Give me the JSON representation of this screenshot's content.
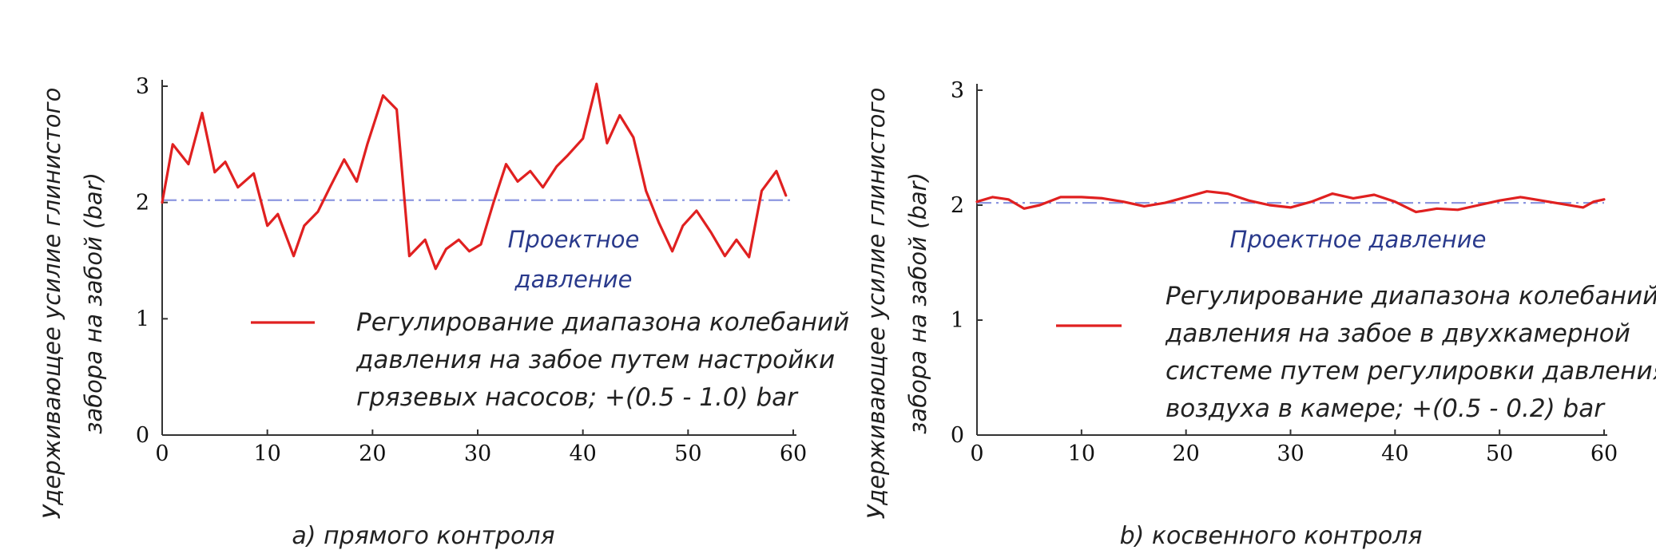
{
  "colors": {
    "series": "#e02020",
    "reference": "#8c96e0",
    "annotation": "#2a3a8c",
    "axis": "#333333"
  },
  "chart_data": [
    {
      "type": "line",
      "ylabel": [
        "Удерживающее усилие глинистого",
        "забора на забой (bar)"
      ],
      "xlabel": "",
      "xlim": [
        0,
        60
      ],
      "ylim": [
        0,
        3
      ],
      "x_ticks": [
        "0",
        "10",
        "20",
        "30",
        "40",
        "50",
        "60"
      ],
      "y_ticks": [
        "0",
        "1",
        "2",
        "3"
      ],
      "reference_line": {
        "y": 2.02,
        "style": "dash-dot"
      },
      "annotation": [
        "Проектное",
        "давление"
      ],
      "legend_lines": [
        "Регулирование диапазона колебаний",
        "давления на забое путем настройки",
        "грязевых насосов; +(0.5 - 1.0) bar"
      ],
      "caption": "a) прямого контроля",
      "series": [
        {
          "x": [
            0,
            1,
            2.5,
            3.8,
            5,
            6,
            7.2,
            8.7,
            10,
            11,
            12.5,
            13.5,
            14.8,
            16,
            17.3,
            18.5,
            19.5,
            21,
            22.3,
            23.5,
            25,
            26,
            27,
            28.2,
            29.2,
            30.3,
            31.5,
            32.7,
            33.8,
            35,
            36.2,
            37.5,
            38.5,
            40,
            41.3,
            42.3,
            43.5,
            44.8,
            46,
            47.2,
            48.5,
            49.5,
            50.8,
            52.2,
            53.5,
            54.6,
            55.8,
            57,
            58.4,
            59.3
          ],
          "values": [
            2.0,
            2.5,
            2.33,
            2.77,
            2.26,
            2.35,
            2.13,
            2.25,
            1.8,
            1.9,
            1.54,
            1.8,
            1.92,
            2.14,
            2.37,
            2.18,
            2.5,
            2.92,
            2.8,
            1.54,
            1.68,
            1.43,
            1.6,
            1.68,
            1.58,
            1.64,
            2.0,
            2.33,
            2.18,
            2.27,
            2.13,
            2.31,
            2.4,
            2.55,
            3.02,
            2.51,
            2.75,
            2.56,
            2.1,
            1.83,
            1.58,
            1.8,
            1.93,
            1.74,
            1.54,
            1.68,
            1.53,
            2.1,
            2.27,
            2.06
          ]
        }
      ]
    },
    {
      "type": "line",
      "ylabel": [
        "Удерживающее усилие глинистого",
        "забора на забой (bar)"
      ],
      "xlabel": "",
      "xlim": [
        0,
        60
      ],
      "ylim": [
        0,
        3
      ],
      "x_ticks": [
        "0",
        "10",
        "20",
        "30",
        "40",
        "50",
        "60"
      ],
      "y_ticks": [
        "0",
        "1",
        "2",
        "3"
      ],
      "reference_line": {
        "y": 2.02,
        "style": "dash-dot"
      },
      "annotation": [
        "Проектное давление"
      ],
      "legend_lines": [
        "Регулирование диапазона колебаний",
        "давления на забое в двухкамерной",
        "системе путем регулировки давления",
        "воздуха в камере; +(0.5 - 0.2) bar"
      ],
      "caption": "b) косвенного контроля",
      "series": [
        {
          "x": [
            0,
            1.5,
            3,
            4.5,
            6,
            8,
            10,
            12,
            14,
            16,
            18,
            20,
            22,
            24,
            26,
            28,
            30,
            32,
            34,
            36,
            38,
            40,
            42,
            44,
            46,
            48,
            50,
            52,
            54,
            56,
            58,
            59,
            60
          ],
          "values": [
            2.03,
            2.07,
            2.05,
            1.97,
            2.0,
            2.07,
            2.07,
            2.06,
            2.03,
            1.99,
            2.02,
            2.07,
            2.12,
            2.1,
            2.04,
            2.0,
            1.98,
            2.03,
            2.1,
            2.06,
            2.09,
            2.03,
            1.94,
            1.97,
            1.96,
            2.0,
            2.04,
            2.07,
            2.04,
            2.01,
            1.98,
            2.03,
            2.05
          ]
        }
      ]
    }
  ]
}
